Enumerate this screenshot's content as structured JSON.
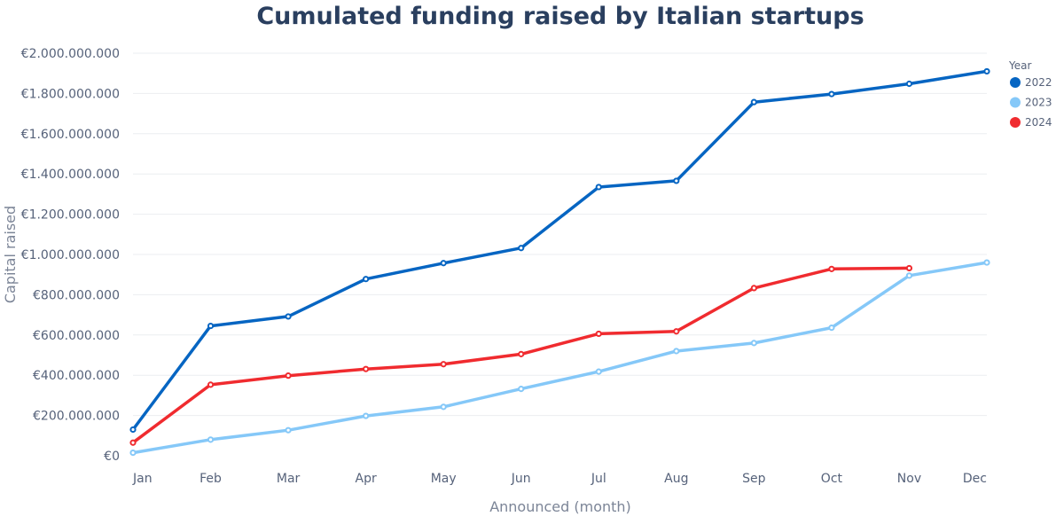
{
  "chart_data": {
    "type": "line",
    "title": "Cumulated funding raised by Italian startups",
    "xlabel": "Announced (month)",
    "ylabel": "Capital raised",
    "categories": [
      "Jan",
      "Feb",
      "Mar",
      "Apr",
      "May",
      "Jun",
      "Jul",
      "Aug",
      "Sep",
      "Oct",
      "Nov",
      "Dec"
    ],
    "ylim": [
      0,
      2000000000
    ],
    "y_ticks": [
      0,
      200000000,
      400000000,
      600000000,
      800000000,
      1000000000,
      1200000000,
      1400000000,
      1600000000,
      1800000000,
      2000000000
    ],
    "y_tick_labels": [
      "€0",
      "€200.000.000",
      "€400.000.000",
      "€600.000.000",
      "€800.000.000",
      "€1.000.000.000",
      "€1.200.000.000",
      "€1.400.000.000",
      "€1.600.000.000",
      "€1.800.000.000",
      "€2.000.000.000"
    ],
    "grid": true,
    "legend": {
      "title": "Year",
      "position": "top-right"
    },
    "series": [
      {
        "name": "2022",
        "color": "#0665c2",
        "values": [
          130000000,
          645000000,
          692000000,
          878000000,
          957000000,
          1032000000,
          1335000000,
          1366000000,
          1757000000,
          1797000000,
          1848000000,
          1910000000
        ]
      },
      {
        "name": "2023",
        "color": "#85c8f8",
        "values": [
          15000000,
          80000000,
          127000000,
          198000000,
          243000000,
          332000000,
          418000000,
          520000000,
          560000000,
          636000000,
          895000000,
          960000000
        ]
      },
      {
        "name": "2024",
        "color": "#f02b2f",
        "values": [
          65000000,
          353000000,
          398000000,
          431000000,
          455000000,
          505000000,
          606000000,
          618000000,
          833000000,
          928000000,
          932000000,
          null
        ]
      }
    ]
  }
}
